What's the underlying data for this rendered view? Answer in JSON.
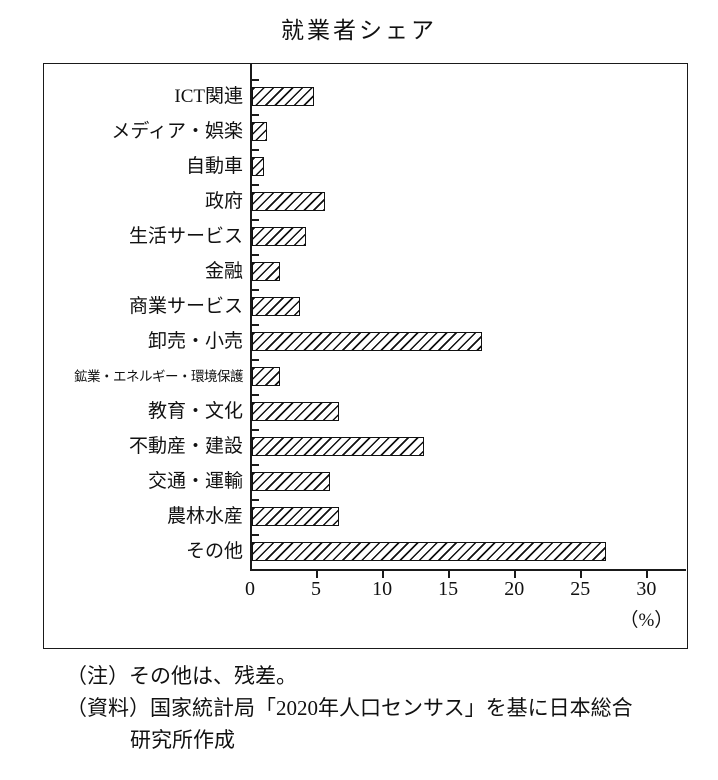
{
  "title": "就業者シェア",
  "chart_data": {
    "type": "bar",
    "orientation": "horizontal",
    "title": "就業者シェア",
    "categories": [
      "ICT関連",
      "メディア・娯楽",
      "自動車",
      "政府",
      "生活サービス",
      "金融",
      "商業サービス",
      "卸売・小売",
      "鉱業・エネルギー・環境保護",
      "教育・文化",
      "不動産・建設",
      "交通・運輸",
      "農林水産",
      "その他"
    ],
    "values": [
      4.7,
      1.1,
      0.9,
      5.5,
      4.1,
      2.1,
      3.6,
      17.4,
      2.1,
      6.6,
      13.0,
      5.9,
      6.6,
      26.8
    ],
    "xlabel": "（%）",
    "xticks": [
      0,
      5,
      10,
      15,
      20,
      25,
      30
    ],
    "xlim": [
      0,
      33
    ],
    "grid": false,
    "legend": "none",
    "bar_style": "white with black diagonal hatch, black outline"
  },
  "notes": {
    "note_label": "（注）",
    "note_text": "その他は、残差。",
    "source_label": "（資料）",
    "source_text": "国家統計局「2020年人口センサス」を基に日本総合",
    "source_text2": "研究所作成"
  }
}
